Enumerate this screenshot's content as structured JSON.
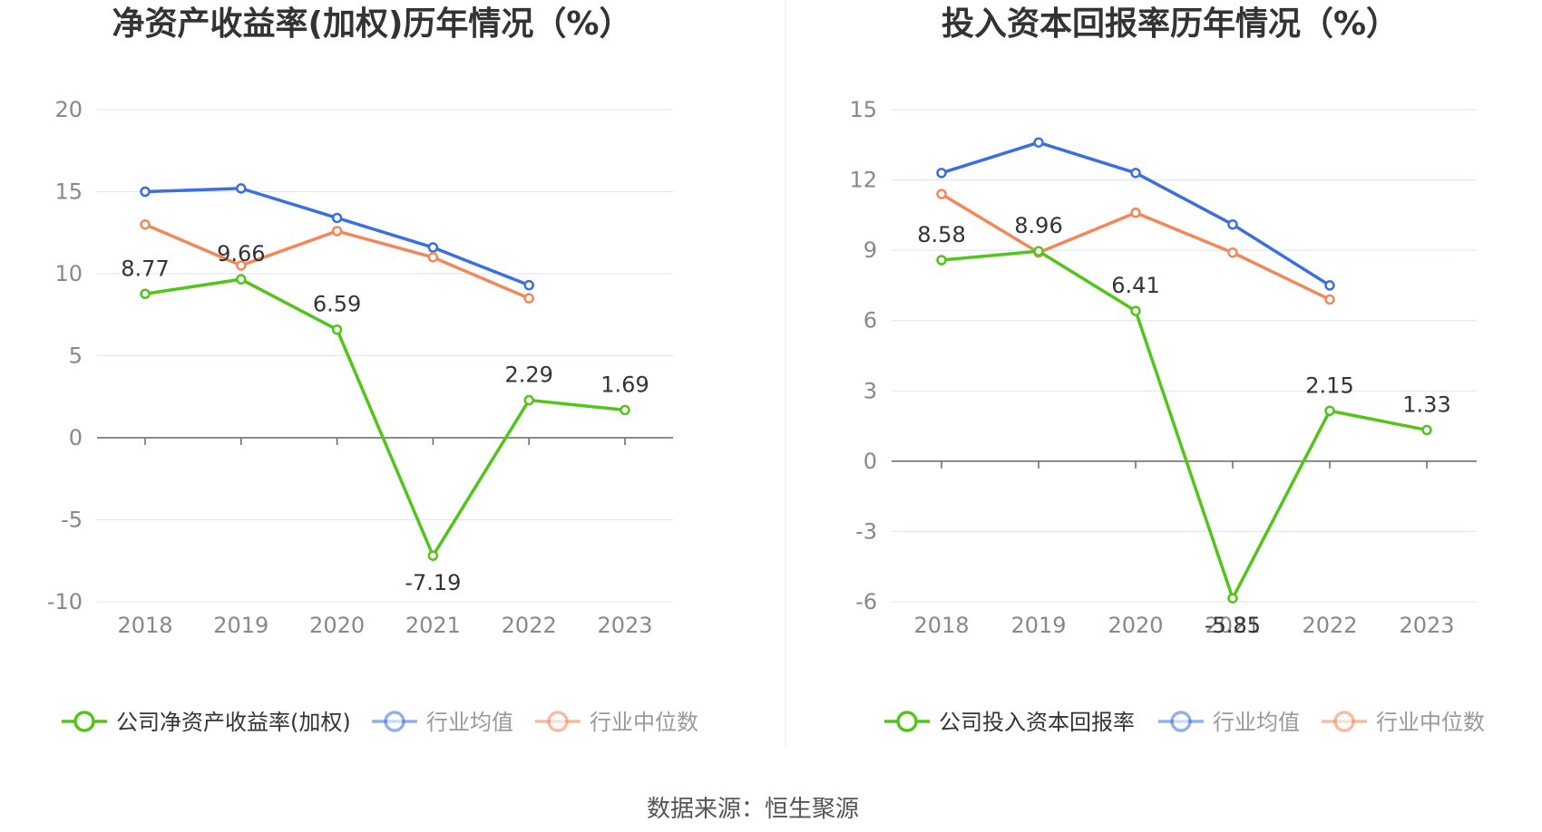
{
  "source_text": "数据来源：恒生聚源",
  "colors": {
    "company": "#52c41a",
    "average": "#3b6fe0",
    "median": "#f2875a",
    "grid": "#dde3f0",
    "axis": "#666666"
  },
  "chart_data": [
    {
      "type": "line",
      "title": "净资产收益率(加权)历年情况（%）",
      "categories": [
        "2018",
        "2019",
        "2020",
        "2021",
        "2022",
        "2023"
      ],
      "ylim": [
        -10,
        20
      ],
      "yticks": [
        20,
        15,
        10,
        5,
        0,
        -5,
        -10
      ],
      "ytick_labels": [
        "20",
        "15",
        "10",
        "5",
        "0",
        "-5",
        "-10"
      ],
      "series": [
        {
          "name": "公司净资产收益率(加权)",
          "key": "company",
          "values": [
            8.77,
            9.66,
            6.59,
            -7.19,
            2.29,
            1.69
          ],
          "labels": [
            "8.77",
            "9.66",
            "6.59",
            "-7.19",
            "2.29",
            "1.69"
          ]
        },
        {
          "name": "行业均值",
          "key": "average",
          "values": [
            15.0,
            15.2,
            13.4,
            11.6,
            9.3,
            null
          ]
        },
        {
          "name": "行业中位数",
          "key": "median",
          "values": [
            13.0,
            10.5,
            12.6,
            11.0,
            8.5,
            null
          ]
        }
      ]
    },
    {
      "type": "line",
      "title": "投入资本回报率历年情况（%）",
      "categories": [
        "2018",
        "2019",
        "2020",
        "2021",
        "2022",
        "2023"
      ],
      "ylim": [
        -6,
        15
      ],
      "yticks": [
        15,
        12,
        9,
        6,
        3,
        0,
        -3,
        -6
      ],
      "ytick_labels": [
        "15",
        "12",
        "9",
        "6",
        "3",
        "0",
        "-3",
        "-6"
      ],
      "series": [
        {
          "name": "公司投入资本回报率",
          "key": "company",
          "values": [
            8.58,
            8.96,
            6.41,
            -5.85,
            2.15,
            1.33
          ],
          "labels": [
            "8.58",
            "8.96",
            "6.41",
            "-5.85",
            "2.15",
            "1.33"
          ]
        },
        {
          "name": "行业均值",
          "key": "average",
          "values": [
            12.3,
            13.6,
            12.3,
            10.1,
            7.5,
            null
          ]
        },
        {
          "name": "行业中位数",
          "key": "median",
          "values": [
            11.4,
            8.9,
            10.6,
            8.9,
            6.9,
            null
          ]
        }
      ]
    }
  ]
}
